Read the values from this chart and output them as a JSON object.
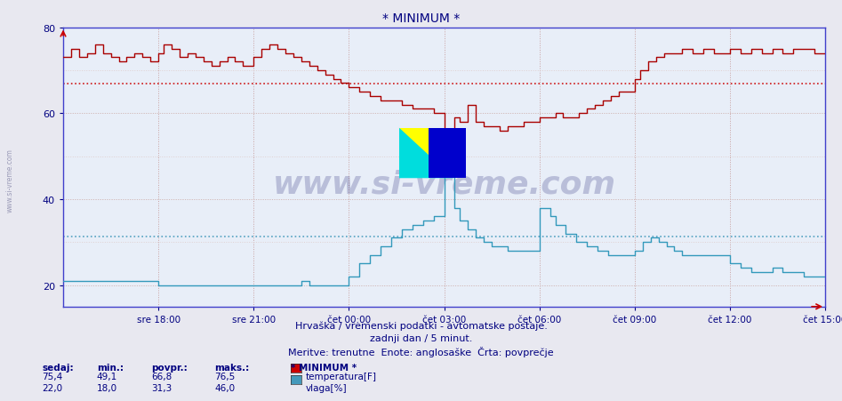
{
  "title": "* MINIMUM *",
  "title_color": "#000080",
  "bg_color": "#e8e8f0",
  "plot_bg_color": "#e8eef8",
  "grid_v_color": "#c8a0a0",
  "grid_h_color": "#d0b8b8",
  "grid_h_light": "#e0d0d0",
  "axis_color": "#4040cc",
  "tick_color": "#000080",
  "watermark": "www.si-vreme.com",
  "watermark_color": "#000060",
  "watermark_alpha": 0.2,
  "subtitle1": "Hrvaška / vremenski podatki - avtomatske postaje.",
  "subtitle2": "zadnji dan / 5 minut.",
  "subtitle3": "Meritve: trenutne  Enote: anglosaške  Črta: povprečje",
  "legend_title": "* MINIMUM *",
  "stats_headers": [
    "sedaj:",
    "min.:",
    "povpr.:",
    "maks.:"
  ],
  "stats_rows": [
    [
      75.4,
      49.1,
      66.8,
      76.5
    ],
    [
      22.0,
      18.0,
      31.3,
      46.0
    ]
  ],
  "legend_labels": [
    "temperatura[F]",
    "vlaga[%]"
  ],
  "legend_colors": [
    "#cc0000",
    "#4499bb"
  ],
  "ylim": [
    15,
    80
  ],
  "yticks": [
    20,
    40,
    60,
    80
  ],
  "x_tick_positions": [
    36,
    72,
    108,
    144,
    180,
    216,
    252,
    288
  ],
  "x_tick_labels": [
    "sre 18:00",
    "sre 21:00",
    "čet 00:00",
    "čet 03:00",
    "čet 06:00",
    "čet 09:00",
    "čet 12:00",
    "čet 15:00"
  ],
  "temp_avg_line": 66.8,
  "temp_avg_color": "#cc0000",
  "humidity_avg_line": 31.3,
  "humidity_avg_color": "#4499bb",
  "temp_color": "#aa0000",
  "humidity_color": "#3399bb",
  "left_label": "www.si-vreme.com"
}
